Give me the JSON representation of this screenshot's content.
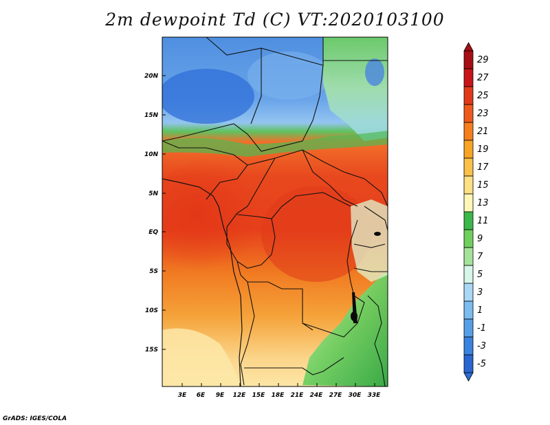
{
  "title": "2m dewpoint Td (C) VT:2020103100",
  "credit": "GrADS: IGES/COLA",
  "map": {
    "lat_labels": [
      "20N",
      "15N",
      "10N",
      "5N",
      "EQ",
      "5S",
      "10S",
      "15S"
    ],
    "lon_labels": [
      "3E",
      "6E",
      "9E",
      "12E",
      "15E",
      "18E",
      "21E",
      "24E",
      "27E",
      "30E",
      "33E"
    ]
  },
  "colorbar": {
    "labels": [
      "29",
      "27",
      "25",
      "23",
      "21",
      "19",
      "17",
      "15",
      "13",
      "11",
      "9",
      "7",
      "5",
      "3",
      "1",
      "-1",
      "-3",
      "-5"
    ],
    "colors": [
      "#a50f15",
      "#c8141b",
      "#e03a1a",
      "#ee5a1c",
      "#f57f1d",
      "#f7a425",
      "#fac14a",
      "#fde085",
      "#fdf7b8",
      "#3cb84a",
      "#6fd05e",
      "#a6e39a",
      "#d7f5e9",
      "#a9d8f5",
      "#7cbcef",
      "#559fe8",
      "#3b83df",
      "#2a66d0",
      "#2b6fd8"
    ],
    "arrow_top": "#a50f15",
    "arrow_bottom": "#2a66d0"
  }
}
